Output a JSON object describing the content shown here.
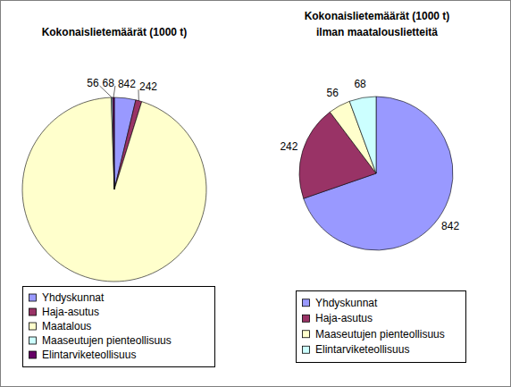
{
  "chart_data": [
    {
      "type": "pie",
      "title": "Kokonaislietemäärät (1000 t)",
      "categories": [
        "Yhdyskunnat",
        "Haja-asutus",
        "Maatalous",
        "Maaseutujen pienteollisuus",
        "Elintarviketeollisuus"
      ],
      "values": [
        842,
        242,
        21300,
        56,
        68
      ],
      "colors": [
        "#9999ff",
        "#993366",
        "#ffffcc",
        "#ccffff",
        "#660066"
      ],
      "data_labels": true,
      "legend": "bottom"
    },
    {
      "type": "pie",
      "title": "Kokonaislietemäärät (1000 t)\nilman maatalouslietteitä",
      "categories": [
        "Yhdyskunnat",
        "Haja-asutus",
        "Maaseutujen pienteollisuus",
        "Elintarviketeollisuus"
      ],
      "values": [
        842,
        242,
        56,
        68
      ],
      "colors": [
        "#9999ff",
        "#993366",
        "#ffffcc",
        "#ccffff"
      ],
      "data_labels": true,
      "legend": "bottom"
    }
  ]
}
